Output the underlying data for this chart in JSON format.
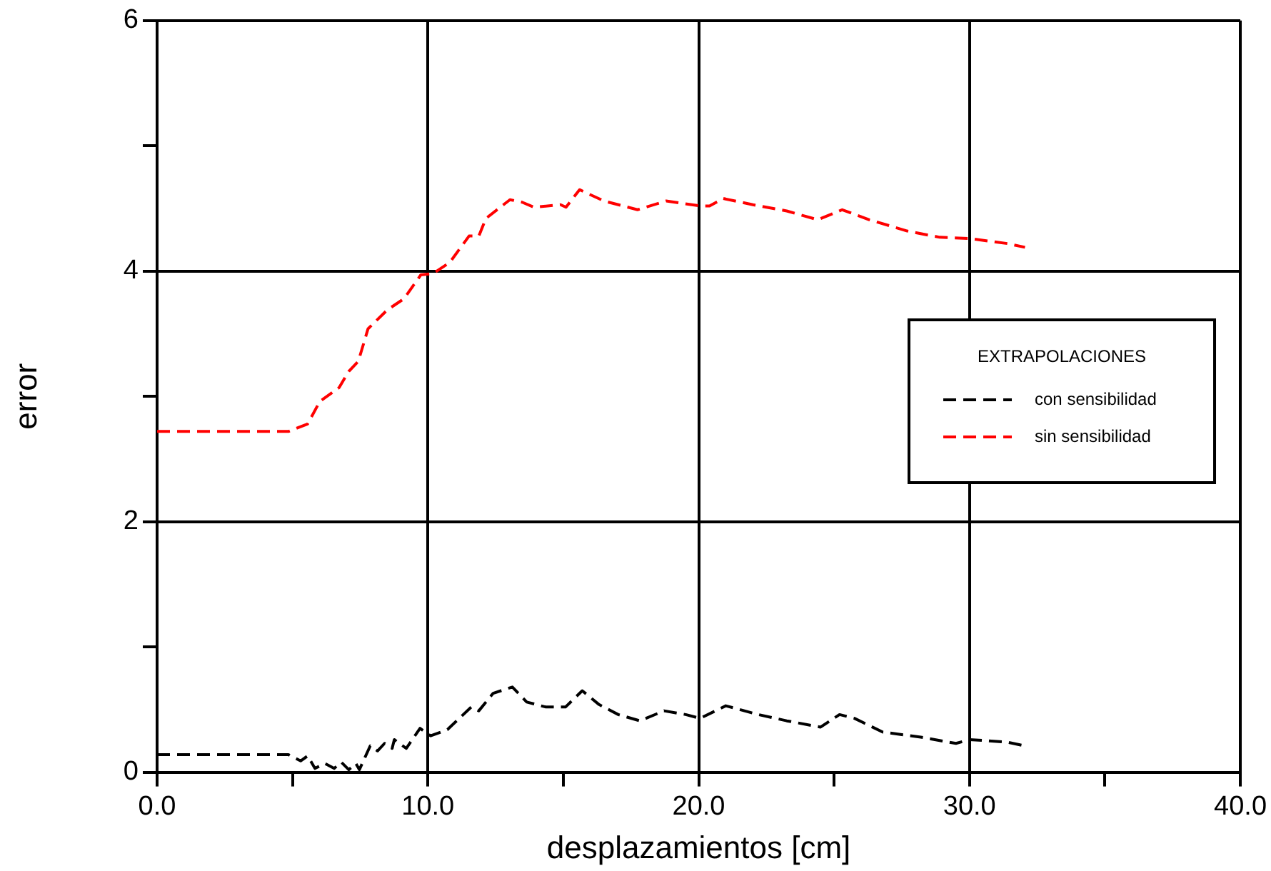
{
  "chart_data": {
    "type": "line",
    "xlabel": "desplazamientos [cm]",
    "ylabel": "error",
    "legend_title": "EXTRAPOLACIONES",
    "xlim": [
      0,
      40
    ],
    "ylim": [
      0,
      6
    ],
    "xticks": [
      {
        "value": 0,
        "label": "0.0"
      },
      {
        "value": 5,
        "label": null
      },
      {
        "value": 10,
        "label": "10.0"
      },
      {
        "value": 15,
        "label": null
      },
      {
        "value": 20,
        "label": "20.0"
      },
      {
        "value": 25,
        "label": null
      },
      {
        "value": 30,
        "label": "30.0"
      },
      {
        "value": 35,
        "label": null
      },
      {
        "value": 40,
        "label": "40.0"
      }
    ],
    "yticks": [
      0,
      {
        "value": 1,
        "label": null
      },
      2,
      {
        "value": 3,
        "label": null
      },
      4,
      {
        "value": 5,
        "label": null
      },
      6
    ],
    "grid": true,
    "legend": "right",
    "marker": "none",
    "line_style": "dashed",
    "series": [
      {
        "name": "con sensibilidad",
        "color": "#000000",
        "x": [
          0,
          4.85,
          5.3,
          5.56,
          5.83,
          6.19,
          6.54,
          6.8,
          7.08,
          7.34,
          7.47,
          7.87,
          8.14,
          8.4,
          8.68,
          8.76,
          9.2,
          9.71,
          10.1,
          10.72,
          11.6,
          11.88,
          12.41,
          13.12,
          13.65,
          14.36,
          15.08,
          15.7,
          16.32,
          17.03,
          17.83,
          18.72,
          19.52,
          20.05,
          21.0,
          22.2,
          23.25,
          24.5,
          25.2,
          25.75,
          26.8,
          28.2,
          29.5,
          30.0,
          31.4,
          32.05
        ],
        "values": [
          0.14,
          0.14,
          0.09,
          0.13,
          0.03,
          0.07,
          0.03,
          0.08,
          0.02,
          0.07,
          0.02,
          0.21,
          0.17,
          0.23,
          0.19,
          0.26,
          0.19,
          0.35,
          0.29,
          0.34,
          0.52,
          0.49,
          0.63,
          0.68,
          0.56,
          0.52,
          0.52,
          0.65,
          0.54,
          0.46,
          0.41,
          0.49,
          0.46,
          0.43,
          0.53,
          0.46,
          0.41,
          0.36,
          0.46,
          0.43,
          0.32,
          0.28,
          0.23,
          0.26,
          0.24,
          0.21
        ]
      },
      {
        "name": "sin sensibilidad",
        "color": "#ff0000",
        "x": [
          0,
          4.85,
          5.56,
          6.01,
          6.72,
          7.08,
          7.43,
          7.79,
          8.5,
          9.12,
          9.74,
          10.19,
          10.81,
          11.52,
          11.88,
          12.14,
          13.03,
          13.48,
          13.92,
          14.9,
          15.1,
          15.6,
          16.5,
          17.74,
          18.8,
          20.05,
          20.4,
          20.9,
          22.0,
          23.25,
          24.4,
          25.3,
          26.3,
          27.7,
          28.9,
          30.0,
          31.4,
          32.05
        ],
        "values": [
          2.72,
          2.72,
          2.78,
          2.96,
          3.07,
          3.2,
          3.28,
          3.54,
          3.69,
          3.78,
          3.97,
          3.98,
          4.07,
          4.28,
          4.28,
          4.42,
          4.57,
          4.55,
          4.51,
          4.53,
          4.51,
          4.65,
          4.56,
          4.49,
          4.56,
          4.52,
          4.52,
          4.58,
          4.53,
          4.48,
          4.41,
          4.49,
          4.41,
          4.32,
          4.27,
          4.26,
          4.22,
          4.19
        ]
      }
    ]
  }
}
